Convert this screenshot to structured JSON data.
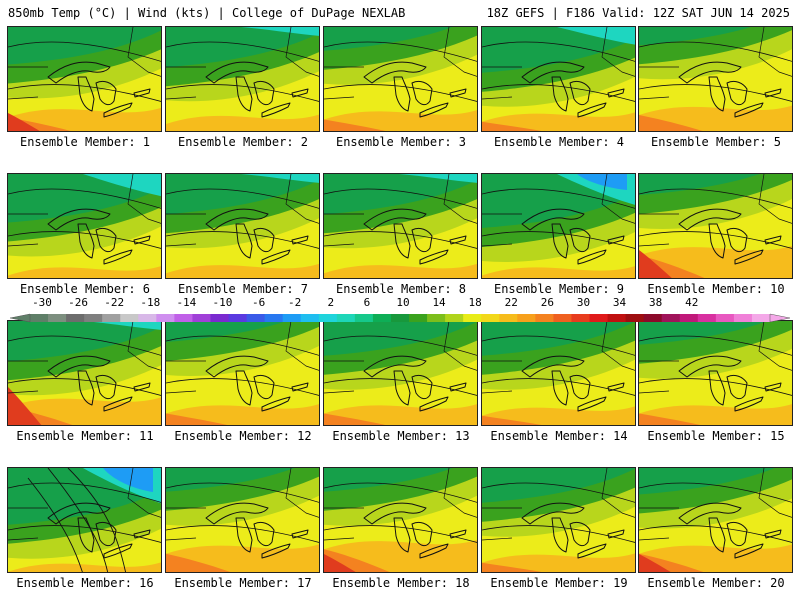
{
  "header": {
    "left": "850mb Temp (°C) | Wind (kts) | College of DuPage NEXLAB",
    "right": "18Z GEFS | F186 Valid: 12Z SAT JUN 14 2025"
  },
  "member_label_prefix": "Ensemble Member: ",
  "members": [
    {
      "n": "1",
      "cold": 0.5,
      "warm": 0.35,
      "hot": 0.1
    },
    {
      "n": "2",
      "cold": 0.55,
      "warm": 0.2,
      "hot": 0.0
    },
    {
      "n": "3",
      "cold": 0.25,
      "warm": 0.3,
      "hot": 0.05
    },
    {
      "n": "4",
      "cold": 0.65,
      "warm": 0.25,
      "hot": 0.05
    },
    {
      "n": "5",
      "cold": 0.15,
      "warm": 0.4,
      "hot": 0.05
    },
    {
      "n": "6",
      "cold": 0.7,
      "warm": 0.1,
      "hot": 0.0
    },
    {
      "n": "7",
      "cold": 0.55,
      "warm": 0.15,
      "hot": 0.0
    },
    {
      "n": "8",
      "cold": 0.55,
      "warm": 0.15,
      "hot": 0.0
    },
    {
      "n": "9",
      "cold": 0.8,
      "warm": 0.1,
      "hot": 0.0
    },
    {
      "n": "10",
      "cold": 0.2,
      "warm": 0.55,
      "hot": 0.15
    },
    {
      "n": "11",
      "cold": 0.55,
      "warm": 0.45,
      "hot": 0.2
    },
    {
      "n": "12",
      "cold": 0.2,
      "warm": 0.3,
      "hot": 0.0
    },
    {
      "n": "13",
      "cold": 0.45,
      "warm": 0.3,
      "hot": 0.0
    },
    {
      "n": "14",
      "cold": 0.45,
      "warm": 0.25,
      "hot": 0.0
    },
    {
      "n": "15",
      "cold": 0.25,
      "warm": 0.3,
      "hot": 0.05
    },
    {
      "n": "16",
      "cold": 0.85,
      "warm": 0.05,
      "hot": 0.0
    },
    {
      "n": "17",
      "cold": 0.25,
      "warm": 0.45,
      "hot": 0.05
    },
    {
      "n": "18",
      "cold": 0.25,
      "warm": 0.55,
      "hot": 0.1
    },
    {
      "n": "19",
      "cold": 0.45,
      "warm": 0.25,
      "hot": 0.0
    },
    {
      "n": "20",
      "cold": 0.3,
      "warm": 0.45,
      "hot": 0.1
    }
  ],
  "colorbar": {
    "ticks": [
      "-30",
      "-26",
      "-22",
      "-18",
      "-14",
      "-10",
      "-6",
      "-2",
      "2",
      "6",
      "10",
      "14",
      "18",
      "22",
      "26",
      "30",
      "34",
      "38",
      "42"
    ],
    "colors": [
      "#5f7f68",
      "#7d8f7f",
      "#6d6d6d",
      "#7f7f7f",
      "#a0a0a0",
      "#c8c8c8",
      "#d8b8e8",
      "#cf8fef",
      "#c060e8",
      "#a040d8",
      "#7a2ad0",
      "#5a3ae0",
      "#3a5ae8",
      "#2878f0",
      "#1e9cf5",
      "#1fbef0",
      "#1fd4dc",
      "#1ed6b8",
      "#16c88a",
      "#0eae56",
      "#18983c",
      "#3aa21e",
      "#7cbe1c",
      "#b0d41c",
      "#e8ec18",
      "#f2d81a",
      "#f6bc1c",
      "#f7a01c",
      "#f48220",
      "#ef6020",
      "#e83c1e",
      "#e01a1a",
      "#c01010",
      "#9e0e10",
      "#8c0a2a",
      "#a0145a",
      "#c0187a",
      "#d830a0",
      "#e858c0",
      "#f080d8",
      "#f4a8e8"
    ]
  }
}
